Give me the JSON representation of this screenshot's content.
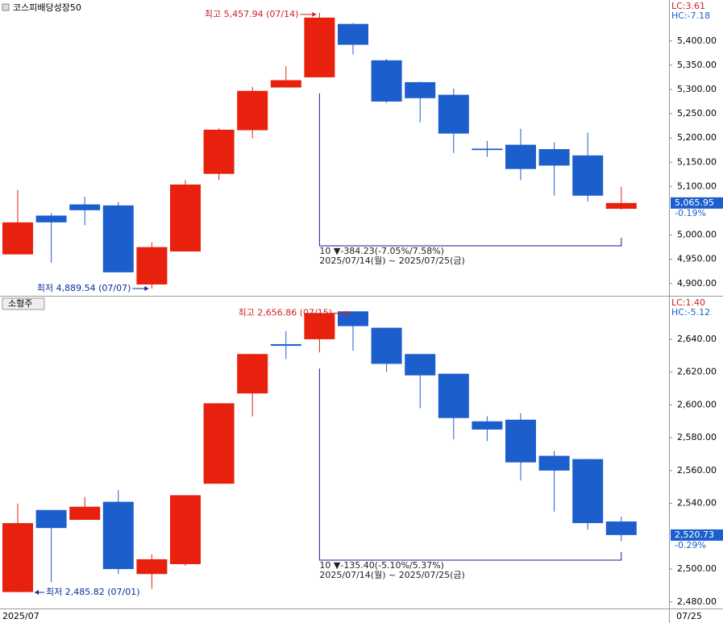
{
  "chart_data": [
    {
      "type": "candlestick",
      "title": "코스피배당성장50",
      "lc": "LC:3.61",
      "hc": "HC:-7.18",
      "up_color": "#e8200e",
      "down_color": "#1c5fcc",
      "categories": [
        null,
        null,
        null,
        null,
        null,
        null,
        null,
        null,
        null,
        null,
        null,
        null,
        null,
        null,
        null,
        null,
        null,
        null,
        null
      ],
      "open": [
        4960,
        5040,
        5063,
        5061,
        4898,
        4966,
        5126,
        5216,
        5304,
        5325,
        5435,
        5360,
        5315,
        5289,
        5178,
        5186,
        5177,
        5164,
        5054
      ],
      "high": [
        5093,
        5045,
        5079,
        5068,
        4985,
        5113,
        5220,
        5305,
        5348,
        5457.94,
        5437,
        5363,
        5316,
        5302,
        5194,
        5219,
        5191,
        5211,
        5099
      ],
      "low": [
        4960,
        4943,
        5020,
        4923,
        4889.54,
        4966,
        5113,
        5199,
        5304,
        5325,
        5372,
        5272,
        5232,
        5169,
        5161,
        5113,
        5081,
        5069,
        5052
      ],
      "close": [
        5026,
        5026,
        5051,
        4923,
        4975,
        5104,
        5217,
        5297,
        5319,
        5448,
        5392,
        5275,
        5282,
        5209,
        5175,
        5136,
        5143,
        5081,
        5065.95
      ],
      "ylim": [
        4878,
        5481
      ],
      "yticks": [
        {
          "value": 5400,
          "label": "5,400.00"
        },
        {
          "value": 5350,
          "label": "5,350.00"
        },
        {
          "value": 5300,
          "label": "5,300.00"
        },
        {
          "value": 5250,
          "label": "5,250.00"
        },
        {
          "value": 5200,
          "label": "5,200.00"
        },
        {
          "value": 5150,
          "label": "5,150.00"
        },
        {
          "value": 5100,
          "label": "5,100.00"
        },
        {
          "value": 5000,
          "label": "5,000.00"
        },
        {
          "value": 4950,
          "label": "4,950.00"
        },
        {
          "value": 4900,
          "label": "4,900.00"
        }
      ],
      "high_annotation": {
        "value": 5457.94,
        "label": "최고 5,457.94 (07/14)"
      },
      "low_annotation": {
        "value": 4889.54,
        "label": "최저 4,889.54 (07/07)"
      },
      "last_price": {
        "value": 5065.95,
        "label": "5,065.95"
      },
      "change": "-0.19%",
      "range_stat": [
        "10 ▼-384.23(-7.05%/7.58%)",
        "2025/07/14(월) ~ 2025/07/25(금)"
      ]
    },
    {
      "type": "candlestick",
      "title": "소형주",
      "lc": "LC:1.40",
      "hc": "HC:-5.12",
      "up_color": "#e8200e",
      "down_color": "#1c5fcc",
      "categories": [
        "2025/07",
        null,
        null,
        null,
        null,
        null,
        null,
        null,
        null,
        null,
        null,
        null,
        null,
        null,
        null,
        null,
        null,
        null,
        "07/25"
      ],
      "open": [
        2486,
        2536,
        2530,
        2541,
        2497,
        2503,
        2552,
        2607,
        2637,
        2640,
        2657,
        2647,
        2631,
        2619,
        2590,
        2591,
        2569,
        2567,
        2529
      ],
      "high": [
        2540,
        2536,
        2544,
        2548,
        2509,
        2545,
        2601,
        2631,
        2645,
        2656,
        2656.86,
        2647,
        2631,
        2619,
        2593,
        2595,
        2572,
        2567,
        2532
      ],
      "low": [
        2485.82,
        2492,
        2530,
        2497,
        2488,
        2502,
        2552,
        2593,
        2628,
        2632,
        2633,
        2620,
        2598,
        2579,
        2578,
        2554,
        2535,
        2524,
        2517
      ],
      "close": [
        2528,
        2525,
        2538,
        2500,
        2506,
        2545,
        2601,
        2631,
        2636,
        2656,
        2648,
        2625,
        2618,
        2592,
        2585,
        2565,
        2560,
        2528,
        2520.73
      ],
      "ylim": [
        2476,
        2665
      ],
      "yticks": [
        {
          "value": 2640,
          "label": "2,640.00"
        },
        {
          "value": 2620,
          "label": "2,620.00"
        },
        {
          "value": 2600,
          "label": "2,600.00"
        },
        {
          "value": 2580,
          "label": "2,580.00"
        },
        {
          "value": 2560,
          "label": "2,560.00"
        },
        {
          "value": 2540,
          "label": "2,540.00"
        },
        {
          "value": 2500,
          "label": "2,500.00"
        },
        {
          "value": 2480,
          "label": "2,480.00"
        }
      ],
      "high_annotation": {
        "value": 2656.86,
        "label": "최고 2,656.86 (07/15)"
      },
      "low_annotation": {
        "value": 2485.82,
        "label": "최저 2,485.82 (07/01)"
      },
      "last_price": {
        "value": 2520.73,
        "label": "2,520.73"
      },
      "change": "-0.29%",
      "range_stat": [
        "10 ▼-135.40(-5.10%/5.37%)",
        "2025/07/14(월) ~ 2025/07/25(금)"
      ]
    }
  ]
}
